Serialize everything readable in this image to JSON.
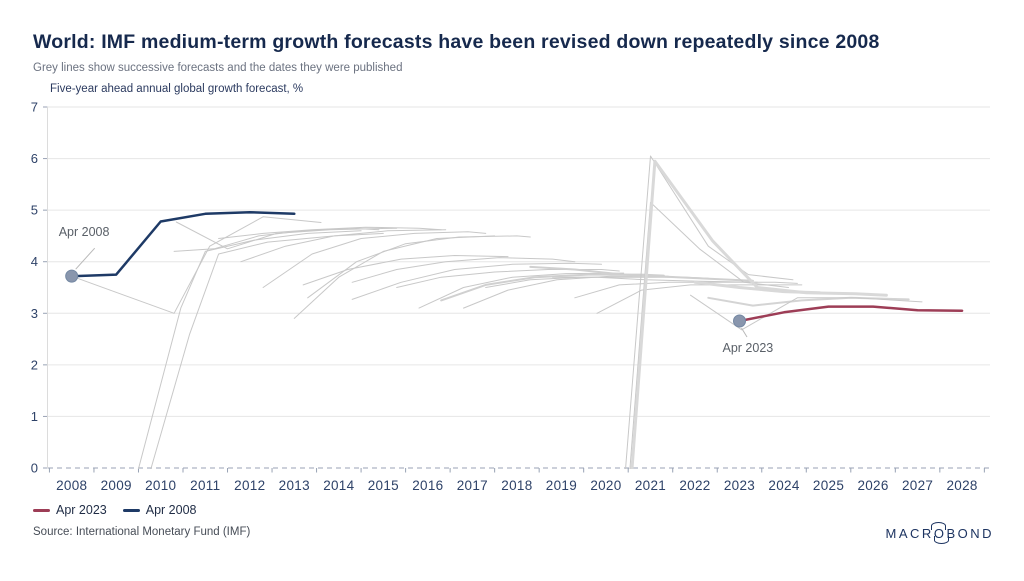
{
  "header": {
    "title": "World: IMF medium-term growth forecasts have been revised down repeatedly since 2008",
    "subtitle": "Grey lines show successive forecasts and the dates they were published"
  },
  "chart_data": {
    "type": "line",
    "title": "Five-year ahead annual global growth forecast, %",
    "xlabel": "",
    "ylabel": "",
    "x_range": [
      2007.5,
      2028.6
    ],
    "ylim": [
      0,
      7
    ],
    "grid": "horizontal",
    "legend_position": "bottom-left",
    "x_ticks": [
      2008,
      2009,
      2010,
      2011,
      2012,
      2013,
      2014,
      2015,
      2016,
      2017,
      2018,
      2019,
      2020,
      2021,
      2022,
      2023,
      2024,
      2025,
      2026,
      2027,
      2028
    ],
    "y_ticks": [
      0,
      1,
      2,
      3,
      4,
      5,
      6,
      7
    ],
    "colors": {
      "grey_line": "#c8c8c8",
      "grey_line_medium": "#d0d0d0",
      "grey_line_thick": "#d9d9d9",
      "apr2008_line": "#1e3a66",
      "apr2023_line": "#9d3d56",
      "grid": "#e6e6e6",
      "zero_axis": "#98a2b4",
      "axis_text": "#2e4268",
      "marker_fill": "#8996ad",
      "marker_stroke": "#7488a3"
    },
    "series": [
      {
        "label": "",
        "color": "#c8c8c8",
        "width": 1,
        "points": [
          [
            2008,
            3.72
          ],
          [
            2010.3,
            3.0
          ],
          [
            2011.1,
            4.3
          ],
          [
            2012.3,
            4.87
          ],
          [
            2013.6,
            4.76
          ]
        ]
      },
      {
        "label": "",
        "color": "#c8c8c8",
        "width": 1,
        "points": [
          [
            2009.2,
            -1.0
          ],
          [
            2010.45,
            3.1
          ],
          [
            2011.0,
            4.2
          ],
          [
            2012.1,
            4.42
          ],
          [
            2013.3,
            4.55
          ],
          [
            2014.5,
            4.6
          ]
        ]
      },
      {
        "label": "",
        "color": "#c8c8c8",
        "width": 1,
        "points": [
          [
            2009.45,
            -1.0
          ],
          [
            2010.65,
            2.6
          ],
          [
            2011.3,
            4.15
          ],
          [
            2012.4,
            4.38
          ],
          [
            2013.9,
            4.5
          ],
          [
            2015.0,
            4.55
          ]
        ]
      },
      {
        "label": "",
        "color": "#c8c8c8",
        "width": 1,
        "points": [
          [
            2010.3,
            4.2
          ],
          [
            2011.2,
            4.25
          ],
          [
            2012.2,
            4.5
          ],
          [
            2013.2,
            4.6
          ],
          [
            2014.3,
            4.65
          ],
          [
            2014.9,
            4.62
          ]
        ]
      },
      {
        "label": "",
        "color": "#c8c8c8",
        "width": 1,
        "points": [
          [
            2010.35,
            4.77
          ],
          [
            2011.5,
            4.25
          ],
          [
            2012.6,
            4.55
          ],
          [
            2013.8,
            4.62
          ],
          [
            2015.3,
            4.65
          ]
        ]
      },
      {
        "label": "",
        "color": "#c8c8c8",
        "width": 1,
        "points": [
          [
            2011.3,
            4.45
          ],
          [
            2012.3,
            4.55
          ],
          [
            2013.4,
            4.62
          ],
          [
            2014.6,
            4.67
          ],
          [
            2015.8,
            4.65
          ],
          [
            2016.3,
            4.62
          ]
        ]
      },
      {
        "label": "",
        "color": "#c8c8c8",
        "width": 1,
        "points": [
          [
            2011.8,
            4.0
          ],
          [
            2012.8,
            4.3
          ],
          [
            2013.9,
            4.5
          ],
          [
            2015.1,
            4.6
          ],
          [
            2016.4,
            4.62
          ]
        ]
      },
      {
        "label": "",
        "color": "#c8c8c8",
        "width": 1,
        "points": [
          [
            2012.3,
            3.5
          ],
          [
            2013.4,
            4.15
          ],
          [
            2014.5,
            4.45
          ],
          [
            2015.7,
            4.55
          ],
          [
            2016.9,
            4.58
          ],
          [
            2017.3,
            4.55
          ]
        ]
      },
      {
        "label": "",
        "color": "#c8c8c8",
        "width": 1,
        "points": [
          [
            2013.0,
            2.9
          ],
          [
            2014.0,
            3.7
          ],
          [
            2015.0,
            4.2
          ],
          [
            2016.2,
            4.45
          ],
          [
            2017.5,
            4.5
          ]
        ]
      },
      {
        "label": "",
        "color": "#c8c8c8",
        "width": 1,
        "points": [
          [
            2013.3,
            3.3
          ],
          [
            2014.4,
            4.0
          ],
          [
            2015.5,
            4.35
          ],
          [
            2016.7,
            4.48
          ],
          [
            2018.0,
            4.5
          ],
          [
            2018.3,
            4.48
          ]
        ]
      },
      {
        "label": "",
        "color": "#c8c8c8",
        "width": 1,
        "points": [
          [
            2013.2,
            3.55
          ],
          [
            2014.2,
            3.85
          ],
          [
            2015.4,
            4.05
          ],
          [
            2016.6,
            4.12
          ],
          [
            2017.8,
            4.1
          ]
        ]
      },
      {
        "label": "",
        "color": "#c8c8c8",
        "width": 1,
        "points": [
          [
            2014.3,
            3.6
          ],
          [
            2015.3,
            3.85
          ],
          [
            2016.4,
            4.0
          ],
          [
            2017.6,
            4.08
          ],
          [
            2018.8,
            4.05
          ],
          [
            2019.3,
            4.0
          ]
        ]
      },
      {
        "label": "",
        "color": "#c8c8c8",
        "width": 1,
        "points": [
          [
            2014.3,
            3.27
          ],
          [
            2015.4,
            3.6
          ],
          [
            2016.6,
            3.85
          ],
          [
            2017.9,
            3.95
          ],
          [
            2019.2,
            3.97
          ],
          [
            2019.9,
            3.95
          ]
        ]
      },
      {
        "label": "",
        "color": "#c8c8c8",
        "width": 1,
        "points": [
          [
            2015.3,
            3.5
          ],
          [
            2016.3,
            3.7
          ],
          [
            2017.5,
            3.8
          ],
          [
            2018.7,
            3.85
          ],
          [
            2019.9,
            3.85
          ],
          [
            2020.3,
            3.82
          ]
        ]
      },
      {
        "label": "",
        "color": "#c8c8c8",
        "width": 1,
        "points": [
          [
            2015.8,
            3.1
          ],
          [
            2016.8,
            3.5
          ],
          [
            2017.9,
            3.7
          ],
          [
            2019.1,
            3.77
          ],
          [
            2020.4,
            3.78
          ]
        ]
      },
      {
        "label": "",
        "color": "#d0d0d0",
        "width": 2,
        "points": [
          [
            2016.3,
            3.25
          ],
          [
            2017.3,
            3.55
          ],
          [
            2018.4,
            3.7
          ],
          [
            2019.6,
            3.75
          ],
          [
            2020.8,
            3.75
          ],
          [
            2021.3,
            3.73
          ]
        ]
      },
      {
        "label": "",
        "color": "#c8c8c8",
        "width": 1,
        "points": [
          [
            2016.8,
            3.1
          ],
          [
            2017.8,
            3.45
          ],
          [
            2018.9,
            3.65
          ],
          [
            2020.1,
            3.72
          ],
          [
            2021.4,
            3.72
          ]
        ]
      },
      {
        "label": "",
        "color": "#c8c8c8",
        "width": 1,
        "points": [
          [
            2017.3,
            3.5
          ],
          [
            2018.3,
            3.65
          ],
          [
            2019.4,
            3.7
          ],
          [
            2020.6,
            3.7
          ],
          [
            2021.8,
            3.7
          ],
          [
            2022.3,
            3.68
          ]
        ]
      },
      {
        "label": "",
        "color": "#d0d0d0",
        "width": 2,
        "points": [
          [
            2018.3,
            3.9
          ],
          [
            2019.3,
            3.85
          ],
          [
            2020.4,
            3.75
          ],
          [
            2021.6,
            3.7
          ],
          [
            2022.8,
            3.65
          ],
          [
            2023.3,
            3.63
          ]
        ]
      },
      {
        "label": "",
        "color": "#c8c8c8",
        "width": 1,
        "points": [
          [
            2018.8,
            3.7
          ],
          [
            2019.8,
            3.7
          ],
          [
            2020.9,
            3.65
          ],
          [
            2022.1,
            3.62
          ],
          [
            2023.4,
            3.6
          ]
        ]
      },
      {
        "label": "",
        "color": "#c8c8c8",
        "width": 1,
        "points": [
          [
            2019.3,
            3.3
          ],
          [
            2020.3,
            3.55
          ],
          [
            2021.4,
            3.6
          ],
          [
            2022.6,
            3.6
          ],
          [
            2023.8,
            3.6
          ],
          [
            2024.3,
            3.58
          ]
        ]
      },
      {
        "label": "",
        "color": "#c8c8c8",
        "width": 1,
        "points": [
          [
            2019.8,
            3.0
          ],
          [
            2020.8,
            3.45
          ],
          [
            2021.9,
            3.55
          ],
          [
            2023.1,
            3.55
          ],
          [
            2024.4,
            3.55
          ]
        ]
      },
      {
        "label": "",
        "color": "#c8c8c8",
        "width": 1,
        "points": [
          [
            2020.35,
            -1.0
          ],
          [
            2021.0,
            6.05
          ],
          [
            2022.3,
            4.3
          ],
          [
            2023.2,
            3.75
          ],
          [
            2024.2,
            3.65
          ]
        ]
      },
      {
        "label": "",
        "color": "#c8c8c8",
        "width": 1,
        "points": [
          [
            2020.45,
            -1.0
          ],
          [
            2021.0,
            5.15
          ],
          [
            2022.1,
            4.25
          ],
          [
            2023.1,
            3.6
          ],
          [
            2024.1,
            3.5
          ]
        ]
      },
      {
        "label": "",
        "color": "#d9d9d9",
        "width": 3,
        "points": [
          [
            2020.5,
            -1.0
          ],
          [
            2021.1,
            5.95
          ],
          [
            2022.4,
            4.4
          ],
          [
            2023.4,
            3.5
          ],
          [
            2024.5,
            3.4
          ],
          [
            2025.6,
            3.38
          ],
          [
            2026.3,
            3.35
          ]
        ]
      },
      {
        "label": "",
        "color": "#d9d9d9",
        "width": 3,
        "points": [
          [
            2022.0,
            3.6
          ],
          [
            2023.0,
            3.5
          ],
          [
            2024.0,
            3.42
          ],
          [
            2024.8,
            3.4
          ]
        ]
      },
      {
        "label": "",
        "color": "#d4d4d4",
        "width": 2,
        "points": [
          [
            2022.3,
            3.3
          ],
          [
            2023.3,
            3.15
          ],
          [
            2024.4,
            3.25
          ],
          [
            2025.5,
            3.3
          ],
          [
            2026.8,
            3.27
          ]
        ]
      },
      {
        "label": "",
        "color": "#c8c8c8",
        "width": 1,
        "points": [
          [
            2021.9,
            3.35
          ],
          [
            2023.05,
            2.68
          ],
          [
            2024.3,
            3.3
          ],
          [
            2025.6,
            3.3
          ],
          [
            2027.1,
            3.22
          ]
        ]
      },
      {
        "label": "Apr 2008",
        "color": "#1e3a66",
        "width": 2.5,
        "points": [
          [
            2008,
            3.72
          ],
          [
            2009,
            3.75
          ],
          [
            2010,
            4.78
          ],
          [
            2011,
            4.93
          ],
          [
            2012,
            4.96
          ],
          [
            2013,
            4.93
          ]
        ]
      },
      {
        "label": "Apr 2023",
        "color": "#9d3d56",
        "width": 2.5,
        "points": [
          [
            2023,
            2.85
          ],
          [
            2024,
            3.02
          ],
          [
            2025,
            3.13
          ],
          [
            2026,
            3.13
          ],
          [
            2027,
            3.06
          ],
          [
            2028,
            3.05
          ]
        ]
      }
    ],
    "markers": [
      {
        "x": 2008,
        "y": 3.72,
        "label": "Apr 2008"
      },
      {
        "x": 2023,
        "y": 2.85,
        "label": "Apr 2023"
      }
    ],
    "legend": [
      {
        "label": "Apr 2023",
        "color": "#9d3d56"
      },
      {
        "label": "Apr 2008",
        "color": "#1e3a66"
      }
    ]
  },
  "footer": {
    "source": "Source: International Monetary Fund (IMF)",
    "logo_pre": "MACR",
    "logo_o": "O",
    "logo_post": "BOND"
  }
}
